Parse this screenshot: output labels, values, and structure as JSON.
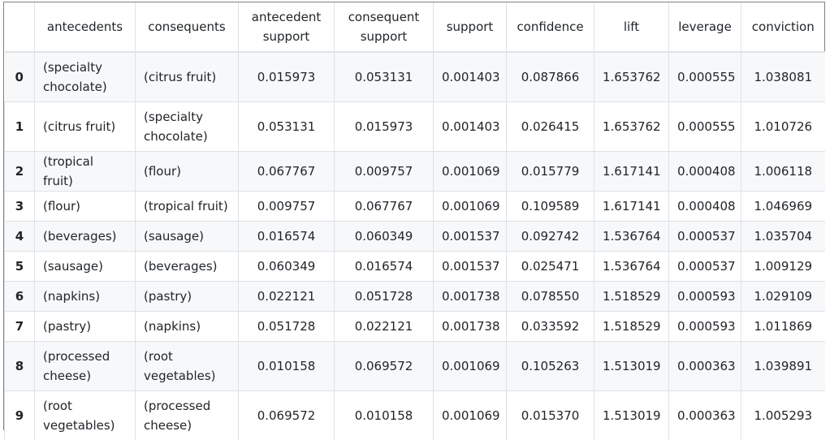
{
  "table": {
    "headers": [
      "",
      "antecedents",
      "consequents",
      "antecedent support",
      "consequent support",
      "support",
      "confidence",
      "lift",
      "leverage",
      "conviction"
    ],
    "rows": [
      {
        "index": "0",
        "antecedents": "(specialty chocolate)",
        "consequents": "(citrus fruit)",
        "antecedent_support": "0.015973",
        "consequent_support": "0.053131",
        "support": "0.001403",
        "confidence": "0.087866",
        "lift": "1.653762",
        "leverage": "0.000555",
        "conviction": "1.038081"
      },
      {
        "index": "1",
        "antecedents": "(citrus fruit)",
        "consequents": "(specialty chocolate)",
        "antecedent_support": "0.053131",
        "consequent_support": "0.015973",
        "support": "0.001403",
        "confidence": "0.026415",
        "lift": "1.653762",
        "leverage": "0.000555",
        "conviction": "1.010726"
      },
      {
        "index": "2",
        "antecedents": "(tropical fruit)",
        "consequents": "(flour)",
        "antecedent_support": "0.067767",
        "consequent_support": "0.009757",
        "support": "0.001069",
        "confidence": "0.015779",
        "lift": "1.617141",
        "leverage": "0.000408",
        "conviction": "1.006118"
      },
      {
        "index": "3",
        "antecedents": "(flour)",
        "consequents": "(tropical fruit)",
        "antecedent_support": "0.009757",
        "consequent_support": "0.067767",
        "support": "0.001069",
        "confidence": "0.109589",
        "lift": "1.617141",
        "leverage": "0.000408",
        "conviction": "1.046969"
      },
      {
        "index": "4",
        "antecedents": "(beverages)",
        "consequents": "(sausage)",
        "antecedent_support": "0.016574",
        "consequent_support": "0.060349",
        "support": "0.001537",
        "confidence": "0.092742",
        "lift": "1.536764",
        "leverage": "0.000537",
        "conviction": "1.035704"
      },
      {
        "index": "5",
        "antecedents": "(sausage)",
        "consequents": "(beverages)",
        "antecedent_support": "0.060349",
        "consequent_support": "0.016574",
        "support": "0.001537",
        "confidence": "0.025471",
        "lift": "1.536764",
        "leverage": "0.000537",
        "conviction": "1.009129"
      },
      {
        "index": "6",
        "antecedents": "(napkins)",
        "consequents": "(pastry)",
        "antecedent_support": "0.022121",
        "consequent_support": "0.051728",
        "support": "0.001738",
        "confidence": "0.078550",
        "lift": "1.518529",
        "leverage": "0.000593",
        "conviction": "1.029109"
      },
      {
        "index": "7",
        "antecedents": "(pastry)",
        "consequents": "(napkins)",
        "antecedent_support": "0.051728",
        "consequent_support": "0.022121",
        "support": "0.001738",
        "confidence": "0.033592",
        "lift": "1.518529",
        "leverage": "0.000593",
        "conviction": "1.011869"
      },
      {
        "index": "8",
        "antecedents": "(processed cheese)",
        "consequents": "(root vegetables)",
        "antecedent_support": "0.010158",
        "consequent_support": "0.069572",
        "support": "0.001069",
        "confidence": "0.105263",
        "lift": "1.513019",
        "leverage": "0.000363",
        "conviction": "1.039891"
      },
      {
        "index": "9",
        "antecedents": "(root vegetables)",
        "consequents": "(processed cheese)",
        "antecedent_support": "0.069572",
        "consequent_support": "0.010158",
        "support": "0.001069",
        "confidence": "0.015370",
        "lift": "1.513019",
        "leverage": "0.000363",
        "conviction": "1.005293"
      }
    ]
  },
  "colors": {
    "text": "#212529",
    "border": "#dee2e6",
    "striped_row": "#f7f8fa",
    "frame": "#808080"
  }
}
